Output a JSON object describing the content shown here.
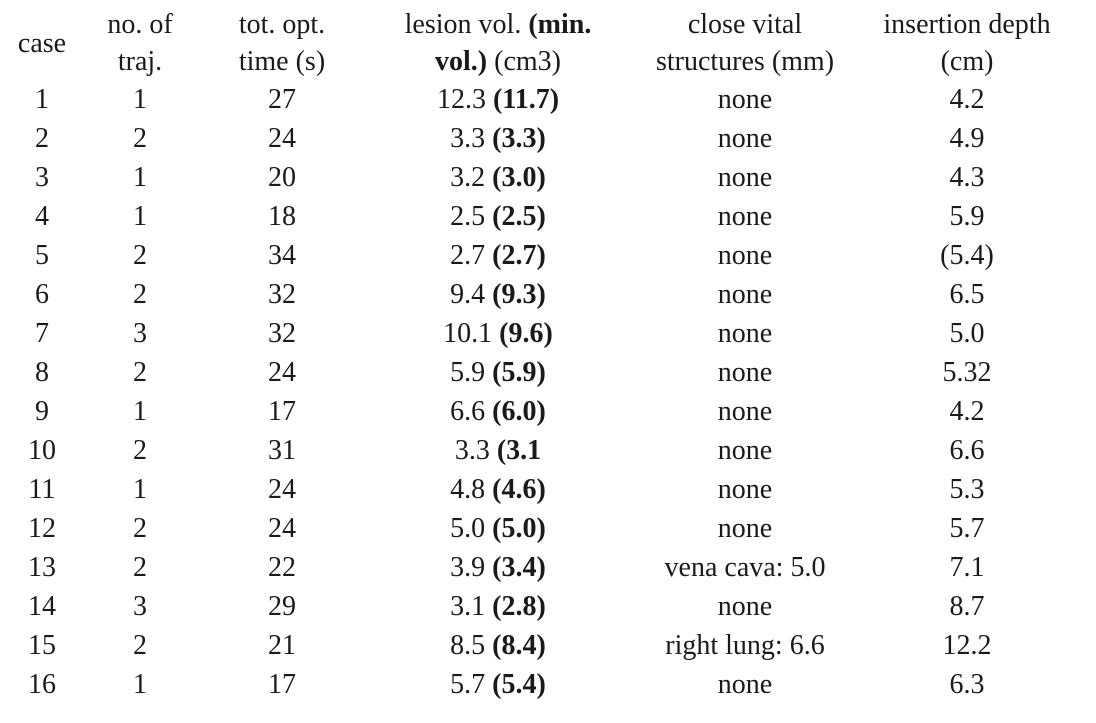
{
  "colors": {
    "text": "#1a1a1a",
    "background": "#ffffff"
  },
  "header": {
    "case": "case",
    "traj": {
      "line1": "no. of",
      "line2": "traj."
    },
    "time": {
      "line1": "tot. opt.",
      "line2": "time (s)"
    },
    "lesion": {
      "line1_regular": "lesion vol.",
      "line1_bold": "(min.",
      "line2_bold": "vol.)",
      "line2_regular": "(cm3)"
    },
    "vital": {
      "line1": "close vital",
      "line2": "structures (mm)"
    },
    "depth": {
      "line1": "insertion depth",
      "line2": "(cm)"
    }
  },
  "rows": [
    {
      "case": "1",
      "traj": "1",
      "time": "27",
      "lesion_value": "12.3",
      "lesion_min": "(11.7)",
      "vital": "none",
      "depth": "4.2"
    },
    {
      "case": "2",
      "traj": "2",
      "time": "24",
      "lesion_value": "3.3",
      "lesion_min": "(3.3)",
      "vital": "none",
      "depth": "4.9"
    },
    {
      "case": "3",
      "traj": "1",
      "time": "20",
      "lesion_value": "3.2",
      "lesion_min": "(3.0)",
      "vital": "none",
      "depth": "4.3"
    },
    {
      "case": "4",
      "traj": "1",
      "time": "18",
      "lesion_value": "2.5",
      "lesion_min": "(2.5)",
      "vital": "none",
      "depth": "5.9"
    },
    {
      "case": "5",
      "traj": "2",
      "time": "34",
      "lesion_value": "2.7",
      "lesion_min": "(2.7)",
      "vital": "none",
      "depth": "(5.4)"
    },
    {
      "case": "6",
      "traj": "2",
      "time": "32",
      "lesion_value": "9.4",
      "lesion_min": "(9.3)",
      "vital": "none",
      "depth": "6.5"
    },
    {
      "case": "7",
      "traj": "3",
      "time": "32",
      "lesion_value": "10.1",
      "lesion_min": "(9.6)",
      "vital": "none",
      "depth": "5.0"
    },
    {
      "case": "8",
      "traj": "2",
      "time": "24",
      "lesion_value": "5.9",
      "lesion_min": "(5.9)",
      "vital": "none",
      "depth": "5.32"
    },
    {
      "case": "9",
      "traj": "1",
      "time": "17",
      "lesion_value": "6.6",
      "lesion_min": "(6.0)",
      "vital": "none",
      "depth": "4.2"
    },
    {
      "case": "10",
      "traj": "2",
      "time": "31",
      "lesion_value": "3.3",
      "lesion_min": "(3.1",
      "vital": "none",
      "depth": "6.6"
    },
    {
      "case": "11",
      "traj": "1",
      "time": "24",
      "lesion_value": "4.8",
      "lesion_min": "(4.6)",
      "vital": "none",
      "depth": "5.3"
    },
    {
      "case": "12",
      "traj": "2",
      "time": "24",
      "lesion_value": "5.0",
      "lesion_min": "(5.0)",
      "vital": "none",
      "depth": "5.7"
    },
    {
      "case": "13",
      "traj": "2",
      "time": "22",
      "lesion_value": "3.9",
      "lesion_min": "(3.4)",
      "vital": "vena cava: 5.0",
      "depth": "7.1"
    },
    {
      "case": "14",
      "traj": "3",
      "time": "29",
      "lesion_value": "3.1",
      "lesion_min": "(2.8)",
      "vital": "none",
      "depth": "8.7"
    },
    {
      "case": "15",
      "traj": "2",
      "time": "21",
      "lesion_value": "8.5",
      "lesion_min": "(8.4)",
      "vital": "right lung: 6.6",
      "depth": "12.2"
    },
    {
      "case": "16",
      "traj": "1",
      "time": "17",
      "lesion_value": "5.7",
      "lesion_min": "(5.4)",
      "vital": "none",
      "depth": "6.3"
    }
  ]
}
